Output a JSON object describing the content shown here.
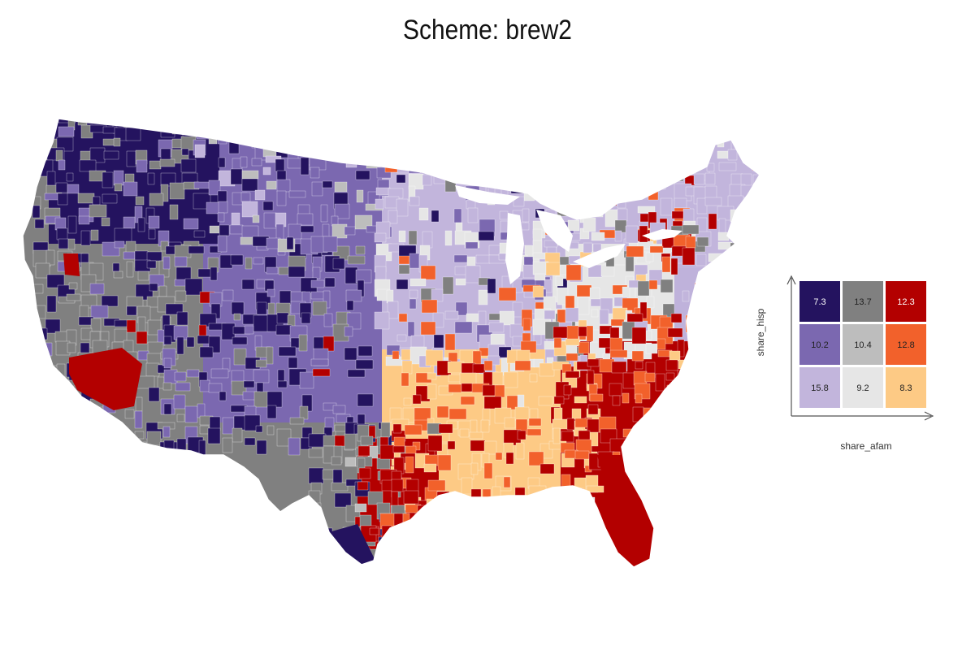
{
  "title": "Scheme: brew2",
  "legend": {
    "xlabel": "share_afam",
    "ylabel": "share_hisp",
    "grid": [
      [
        {
          "value": "7.3",
          "color": "#24135f",
          "text_color": "#ffffff"
        },
        {
          "value": "13.7",
          "color": "#808080",
          "text_color": "#222222"
        },
        {
          "value": "12.3",
          "color": "#b30000",
          "text_color": "#ffffff"
        }
      ],
      [
        {
          "value": "10.2",
          "color": "#7b68b0",
          "text_color": "#222222"
        },
        {
          "value": "10.4",
          "color": "#bdbdbd",
          "text_color": "#222222"
        },
        {
          "value": "12.8",
          "color": "#f2612b",
          "text_color": "#222222"
        }
      ],
      [
        {
          "value": "15.8",
          "color": "#c2b5dc",
          "text_color": "#222222"
        },
        {
          "value": "9.2",
          "color": "#e6e6e6",
          "text_color": "#222222"
        },
        {
          "value": "8.3",
          "color": "#fdca85",
          "text_color": "#222222"
        }
      ]
    ]
  }
}
